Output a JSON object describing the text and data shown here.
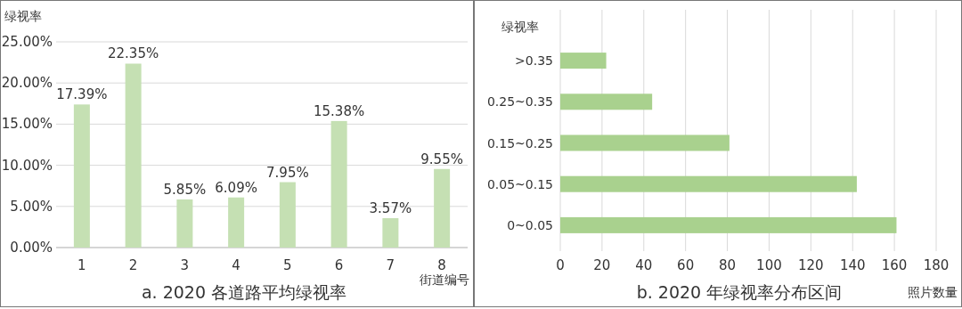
{
  "chart_data": [
    {
      "type": "bar",
      "title": "a. 2020 各道路平均绿视率",
      "xlabel": "街道编号",
      "ylabel": "绿视率",
      "categories": [
        "1",
        "2",
        "3",
        "4",
        "5",
        "6",
        "7",
        "8"
      ],
      "values": [
        17.39,
        22.35,
        5.85,
        6.09,
        7.95,
        15.38,
        3.57,
        9.55
      ],
      "value_labels": [
        "17.39%",
        "22.35%",
        "5.85%",
        "6.09%",
        "7.95%",
        "15.38%",
        "3.57%",
        "9.55%"
      ],
      "color": "#c5e0b3",
      "ylim": [
        0,
        25
      ],
      "yticks": [
        {
          "value": 0,
          "label": "0.00%"
        },
        {
          "value": 5,
          "label": "5.00%"
        },
        {
          "value": 10,
          "label": "10.00%"
        },
        {
          "value": 15,
          "label": "15.00%"
        },
        {
          "value": 20,
          "label": "20.00%"
        },
        {
          "value": 25,
          "label": "25.00%"
        }
      ],
      "grid": "y"
    },
    {
      "type": "bar",
      "orientation": "horizontal",
      "title": "b. 2020 年绿视率分布区间",
      "xlabel": "照片数量",
      "ylabel": "绿视率",
      "categories": [
        ">0.35",
        "0.25~0.35",
        "0.15~0.25",
        "0.05~0.15",
        "0~0.05"
      ],
      "values": [
        22,
        44,
        81,
        142,
        161
      ],
      "color": "#a9d18e",
      "xlim": [
        0,
        180
      ],
      "xticks": [
        0,
        20,
        40,
        60,
        80,
        100,
        120,
        140,
        160,
        180
      ],
      "grid": "x"
    }
  ]
}
